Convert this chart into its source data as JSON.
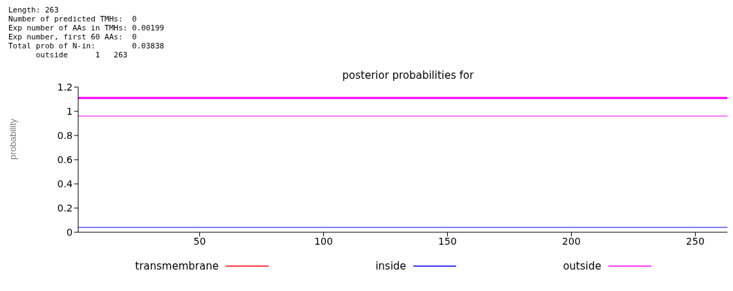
{
  "chart_data": {
    "type": "line",
    "title": "posterior probabilities for",
    "ylabel": "probability",
    "annotations": [
      "Length: 263",
      "Number of predicted TMHs:  0",
      "Exp number of AAs in TMHs: 0.00199",
      "Exp number, first 60 AAs:  0",
      "Total prob of N-in:        0.03838",
      "      outside      1   263"
    ],
    "x": [
      1,
      263
    ],
    "series": [
      {
        "name": "transmembrane",
        "color": "#ff0000",
        "values": [
          null,
          null
        ]
      },
      {
        "name": "inside",
        "color": "#0000ff",
        "values": [
          0.04,
          0.04
        ]
      },
      {
        "name": "outside",
        "color": "#ff00ff",
        "values": [
          0.96,
          0.96
        ]
      },
      {
        "color": "#ff00ff",
        "values": [
          1.11,
          1.11
        ]
      }
    ],
    "xlim": [
      1,
      263
    ],
    "xticks": [
      50,
      100,
      150,
      200,
      250
    ],
    "ylim": [
      0,
      1.2
    ],
    "yticks": [
      0,
      0.2,
      0.4,
      0.6,
      0.8,
      1,
      1.2
    ],
    "legend": "bottom",
    "grid": false,
    "marker": "none",
    "line_style": "solid"
  }
}
